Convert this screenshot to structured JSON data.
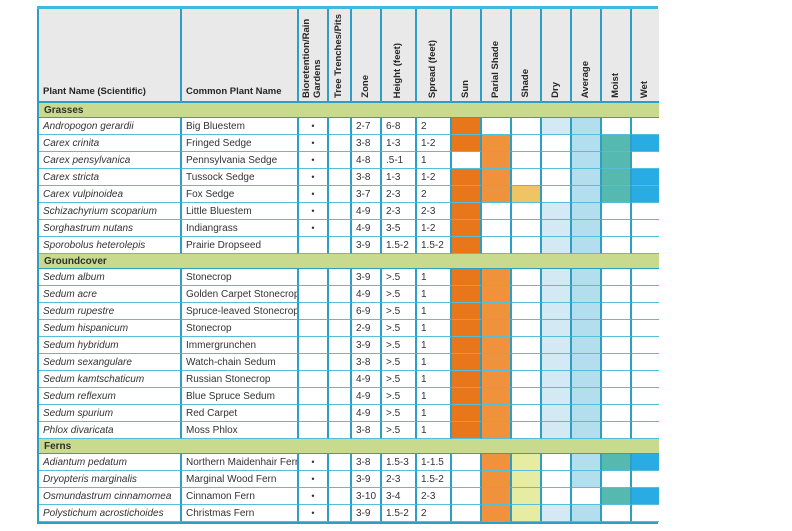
{
  "table": {
    "bullet": "•",
    "columns": [
      {
        "key": "sci",
        "label": "Plant Name (Scientific)"
      },
      {
        "key": "com",
        "label": "Common Plant Name"
      },
      {
        "key": "bio",
        "label": "Bioretention/Rain Gardens"
      },
      {
        "key": "tree",
        "label": "Tree Trenches/Pits"
      },
      {
        "key": "zone",
        "label": "Zone"
      },
      {
        "key": "height",
        "label": "Height (feet)"
      },
      {
        "key": "spread",
        "label": "Spread (feet)"
      },
      {
        "key": "sun",
        "label": "Sun"
      },
      {
        "key": "partial",
        "label": "Parial Shade"
      },
      {
        "key": "shade",
        "label": "Shade"
      },
      {
        "key": "dry",
        "label": "Dry"
      },
      {
        "key": "avg",
        "label": "Average"
      },
      {
        "key": "moist",
        "label": "Moist"
      },
      {
        "key": "wet",
        "label": "Wet"
      }
    ],
    "colors": {
      "full_sun": "#E8771C",
      "part_sun": "#F0923C",
      "gold": "#EFC463",
      "pale_green": "#E6EDA3",
      "pale_blue": "#D3EAF4",
      "light_blue": "#B3DEEE",
      "teal": "#55B9AF",
      "blue": "#29ACE3"
    },
    "sections": [
      {
        "title": "Grasses",
        "rows": [
          {
            "sci": "Andropogon gerardii",
            "com": "Big Bluestem",
            "bio": true,
            "zone": "2-7",
            "h": "6-8",
            "s": "2",
            "c": {
              "sun": "full_sun",
              "dry": "pale_blue",
              "avg": "light_blue"
            }
          },
          {
            "sci": "Carex crinita",
            "com": "Fringed Sedge",
            "bio": true,
            "zone": "3-8",
            "h": "1-3",
            "s": "1-2",
            "c": {
              "sun": "full_sun",
              "partial": "part_sun",
              "avg": "light_blue",
              "moist": "teal",
              "wet": "blue"
            }
          },
          {
            "sci": "Carex pensylvanica",
            "com": "Pennsylvania Sedge",
            "bio": true,
            "zone": "4-8",
            "h": ".5-1",
            "s": "1",
            "c": {
              "partial": "part_sun",
              "avg": "light_blue",
              "moist": "teal"
            }
          },
          {
            "sci": "Carex stricta",
            "com": "Tussock Sedge",
            "bio": true,
            "zone": "3-8",
            "h": "1-3",
            "s": "1-2",
            "c": {
              "sun": "full_sun",
              "partial": "part_sun",
              "avg": "light_blue",
              "moist": "teal",
              "wet": "blue"
            }
          },
          {
            "sci": "Carex vulpinoidea",
            "com": "Fox Sedge",
            "bio": true,
            "zone": "3-7",
            "h": "2-3",
            "s": "2",
            "c": {
              "sun": "full_sun",
              "partial": "part_sun",
              "shade": "gold",
              "avg": "light_blue",
              "moist": "teal",
              "wet": "blue"
            }
          },
          {
            "sci": "Schizachyrium scoparium",
            "com": "Little Bluestem",
            "bio": true,
            "zone": "4-9",
            "h": "2-3",
            "s": "2-3",
            "c": {
              "sun": "full_sun",
              "dry": "pale_blue",
              "avg": "light_blue"
            }
          },
          {
            "sci": "Sorghastrum nutans",
            "com": "Indiangrass",
            "bio": true,
            "zone": "4-9",
            "h": "3-5",
            "s": "1-2",
            "c": {
              "sun": "full_sun",
              "dry": "pale_blue",
              "avg": "light_blue"
            }
          },
          {
            "sci": "Sporobolus heterolepis",
            "com": "Prairie Dropseed",
            "bio": false,
            "zone": "3-9",
            "h": "1.5-2",
            "s": "1.5-2",
            "c": {
              "sun": "full_sun",
              "dry": "pale_blue",
              "avg": "light_blue"
            }
          }
        ]
      },
      {
        "title": "Groundcover",
        "rows": [
          {
            "sci": "Sedum album",
            "com": "Stonecrop",
            "bio": false,
            "zone": "3-9",
            "h": ">.5",
            "s": "1",
            "c": {
              "sun": "full_sun",
              "partial": "part_sun",
              "dry": "pale_blue",
              "avg": "light_blue"
            }
          },
          {
            "sci": "Sedum acre",
            "com": "Golden Carpet Stonecrop",
            "bio": false,
            "zone": "4-9",
            "h": ">.5",
            "s": "1",
            "c": {
              "sun": "full_sun",
              "partial": "part_sun",
              "dry": "pale_blue",
              "avg": "light_blue"
            }
          },
          {
            "sci": "Sedum rupestre",
            "com": "Spruce-leaved Stonecrop",
            "bio": false,
            "zone": "6-9",
            "h": ">.5",
            "s": "1",
            "c": {
              "sun": "full_sun",
              "partial": "part_sun",
              "dry": "pale_blue",
              "avg": "light_blue"
            }
          },
          {
            "sci": "Sedum hispanicum",
            "com": "Stonecrop",
            "bio": false,
            "zone": "2-9",
            "h": ">.5",
            "s": "1",
            "c": {
              "sun": "full_sun",
              "partial": "part_sun",
              "dry": "pale_blue",
              "avg": "light_blue"
            }
          },
          {
            "sci": "Sedum hybridum",
            "com": "Immergrunchen",
            "bio": false,
            "zone": "3-9",
            "h": ">.5",
            "s": "1",
            "c": {
              "sun": "full_sun",
              "partial": "part_sun",
              "dry": "pale_blue",
              "avg": "light_blue"
            }
          },
          {
            "sci": "Sedum sexangulare",
            "com": "Watch-chain Sedum",
            "bio": false,
            "zone": "3-8",
            "h": ">.5",
            "s": "1",
            "c": {
              "sun": "full_sun",
              "partial": "part_sun",
              "dry": "pale_blue",
              "avg": "light_blue"
            }
          },
          {
            "sci": "Sedum kamtschaticum",
            "com": "Russian Stonecrop",
            "bio": false,
            "zone": "4-9",
            "h": ">.5",
            "s": "1",
            "c": {
              "sun": "full_sun",
              "partial": "part_sun",
              "dry": "pale_blue",
              "avg": "light_blue"
            }
          },
          {
            "sci": "Sedum reflexum",
            "com": "Blue Spruce Sedum",
            "bio": false,
            "zone": "4-9",
            "h": ">.5",
            "s": "1",
            "c": {
              "sun": "full_sun",
              "partial": "part_sun",
              "dry": "pale_blue",
              "avg": "light_blue"
            }
          },
          {
            "sci": "Sedum spurium",
            "com": "Red Carpet",
            "bio": false,
            "zone": "4-9",
            "h": ">.5",
            "s": "1",
            "c": {
              "sun": "full_sun",
              "partial": "part_sun",
              "dry": "pale_blue",
              "avg": "light_blue"
            }
          },
          {
            "sci": "Phlox divaricata",
            "com": "Moss Phlox",
            "bio": false,
            "zone": "3-8",
            "h": ">.5",
            "s": "1",
            "c": {
              "sun": "full_sun",
              "partial": "part_sun",
              "dry": "pale_blue",
              "avg": "light_blue"
            }
          }
        ]
      },
      {
        "title": "Ferns",
        "rows": [
          {
            "sci": "Adiantum pedatum",
            "com": "Northern Maidenhair Fern",
            "bio": true,
            "zone": "3-8",
            "h": "1.5-3",
            "s": "1-1.5",
            "c": {
              "partial": "part_sun",
              "shade": "pale_green",
              "avg": "light_blue",
              "moist": "teal",
              "wet": "blue"
            }
          },
          {
            "sci": "Dryopteris marginalis",
            "com": "Marginal Wood Fern",
            "bio": true,
            "zone": "3-9",
            "h": "2-3",
            "s": "1.5-2",
            "c": {
              "partial": "part_sun",
              "shade": "pale_green",
              "avg": "light_blue"
            }
          },
          {
            "sci": "Osmundastrum cinnamomea",
            "com": "Cinnamon Fern",
            "bio": true,
            "zone": "3-10",
            "h": "3-4",
            "s": "2-3",
            "c": {
              "partial": "part_sun",
              "shade": "pale_green",
              "moist": "teal",
              "wet": "blue"
            }
          },
          {
            "sci": "Polystichum acrostichoides",
            "com": "Christmas Fern",
            "bio": true,
            "zone": "3-9",
            "h": "1.5-2",
            "s": "2",
            "c": {
              "partial": "part_sun",
              "shade": "pale_green",
              "dry": "pale_blue",
              "avg": "light_blue"
            }
          }
        ]
      }
    ]
  }
}
